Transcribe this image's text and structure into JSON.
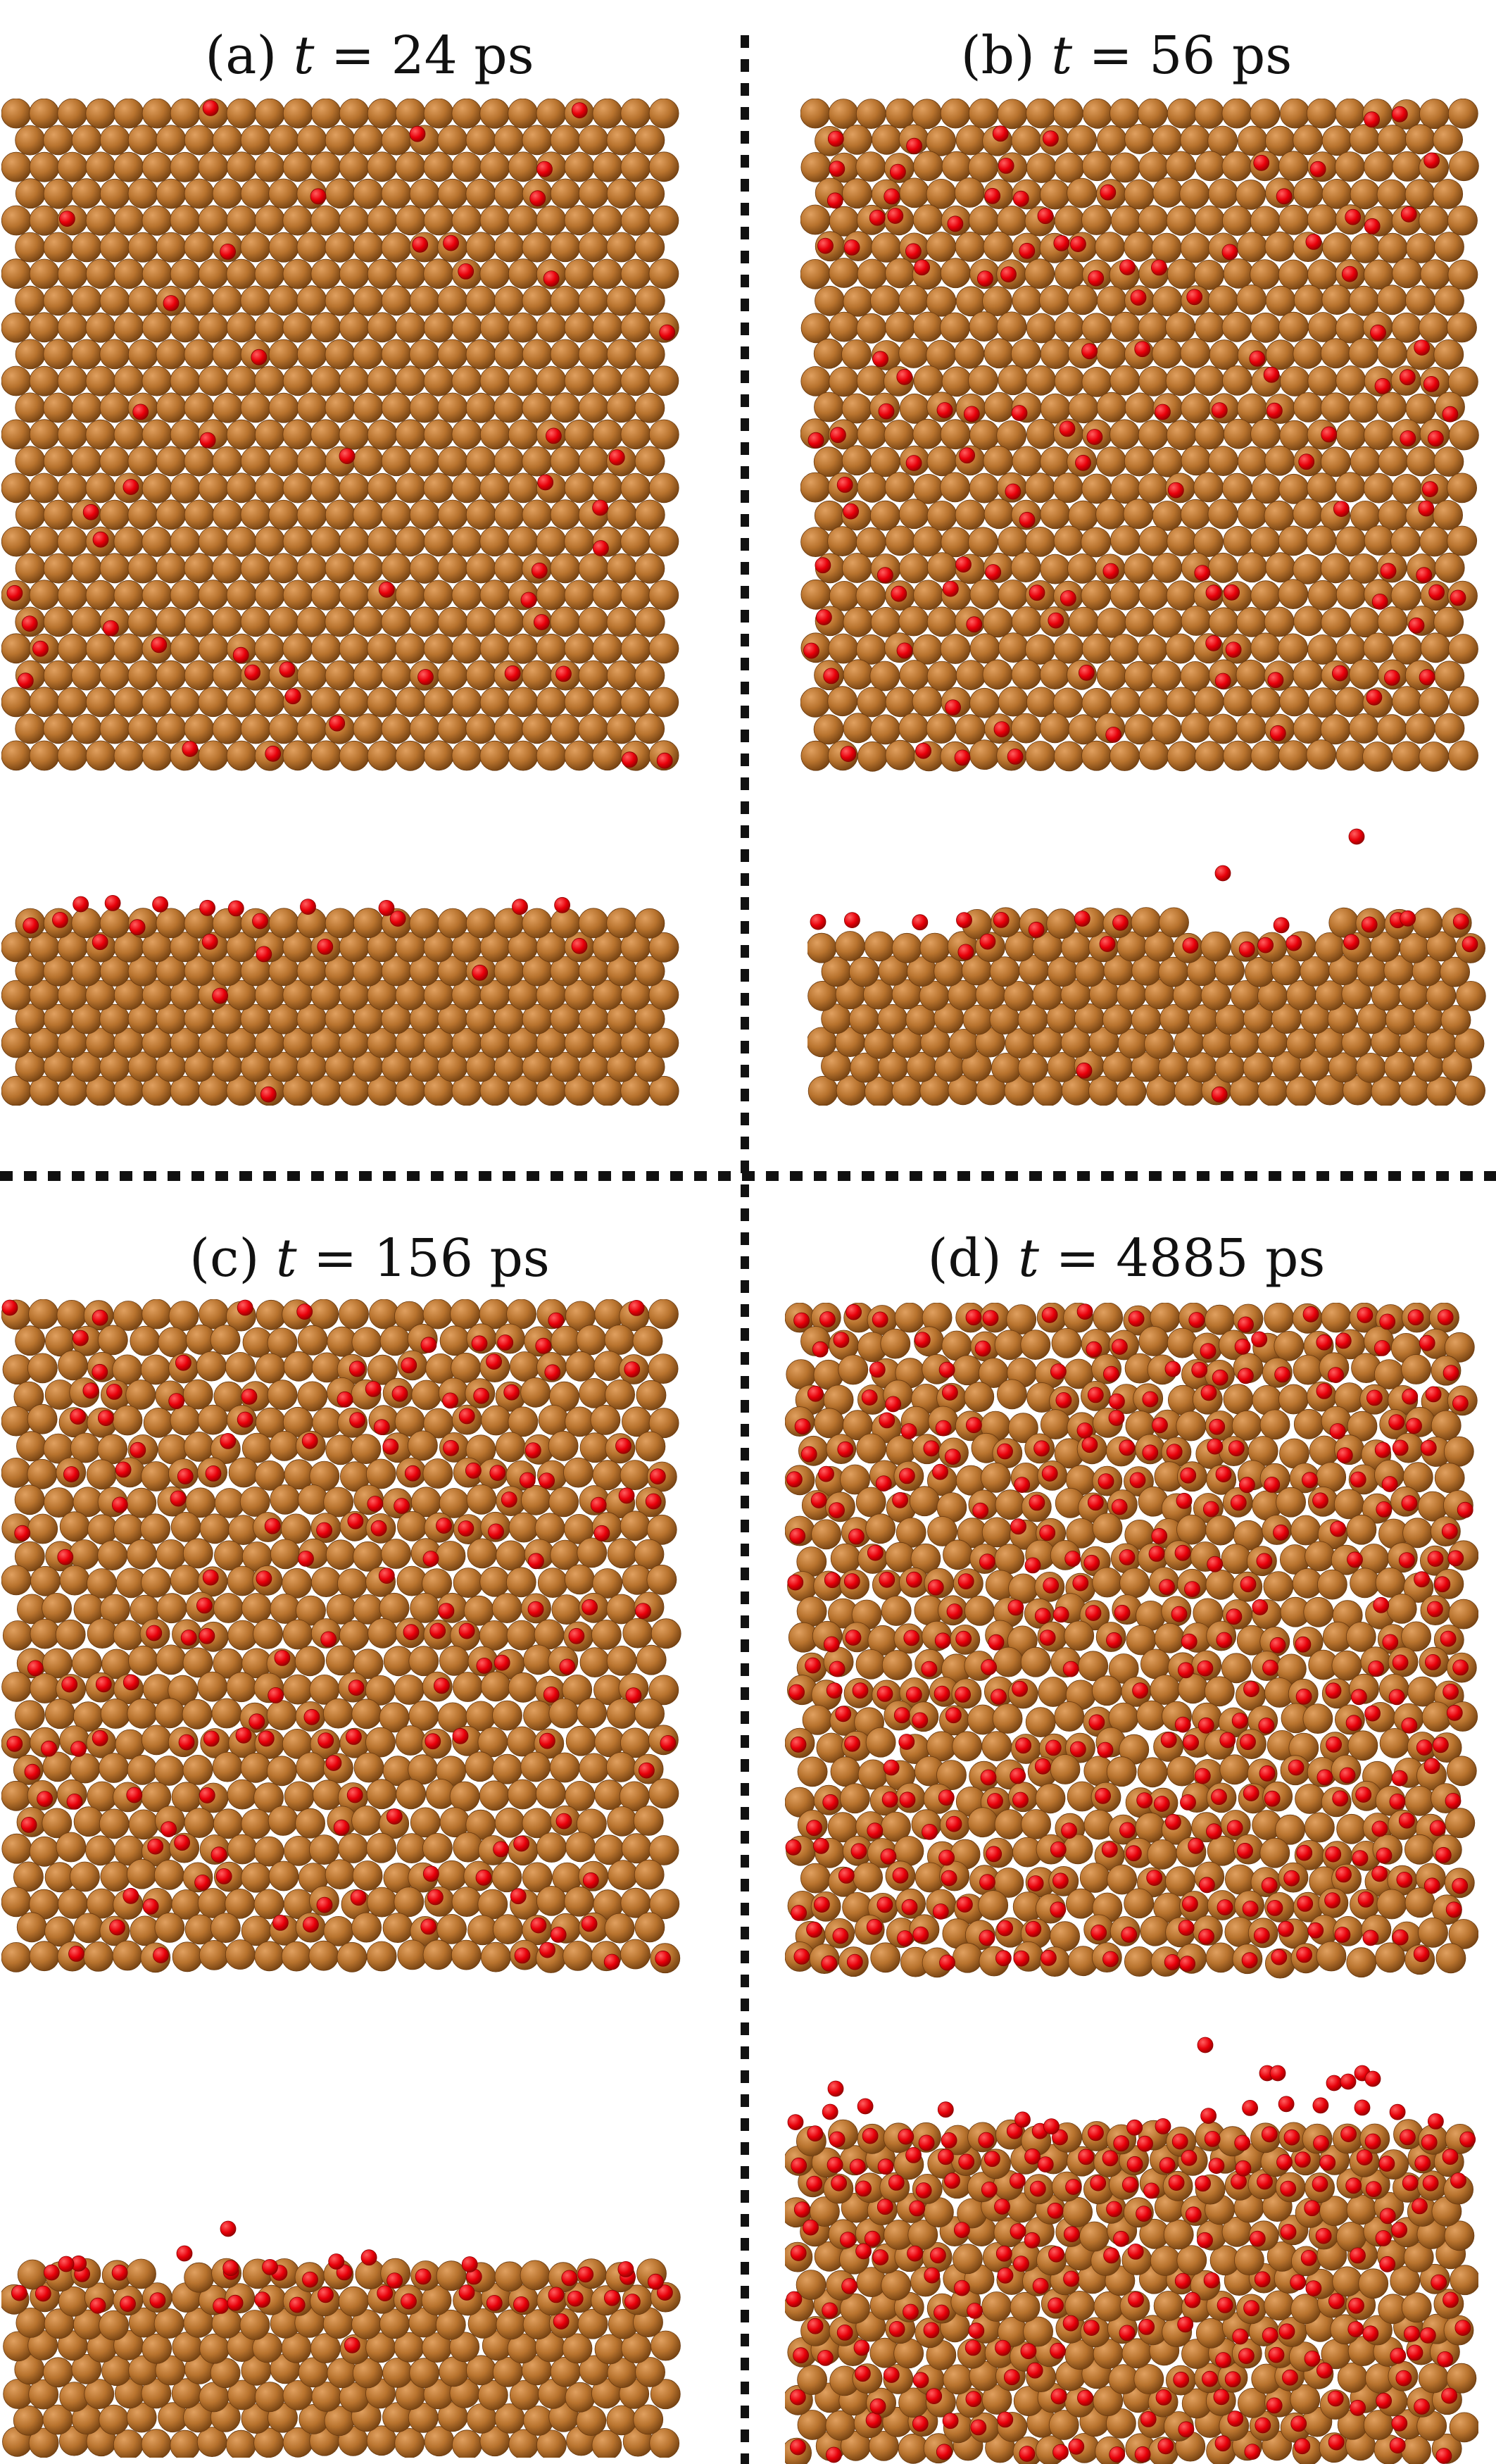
{
  "panels": [
    {
      "id": "a",
      "label": "(a)",
      "var": "t",
      "eq": "=",
      "value": "24",
      "unit": "ps",
      "oxygen_level": 0.08,
      "roughness": 0.05
    },
    {
      "id": "b",
      "label": "(b)",
      "var": "t",
      "eq": "=",
      "value": "56",
      "unit": "ps",
      "oxygen_level": 0.16,
      "roughness": 0.25
    },
    {
      "id": "c",
      "label": "(c)",
      "var": "t",
      "eq": "=",
      "value": "156",
      "unit": "ps",
      "oxygen_level": 0.3,
      "roughness": 0.55
    },
    {
      "id": "d",
      "label": "(d)",
      "var": "t",
      "eq": "=",
      "value": "4885",
      "unit": "ps",
      "oxygen_level": 0.55,
      "roughness": 0.9
    }
  ],
  "colors": {
    "copper": "#b8732e",
    "copper_dark": "#7a4614",
    "copper_light": "#e0a060",
    "oxygen": "#e8000a",
    "oxygen_light": "#ff6060"
  }
}
